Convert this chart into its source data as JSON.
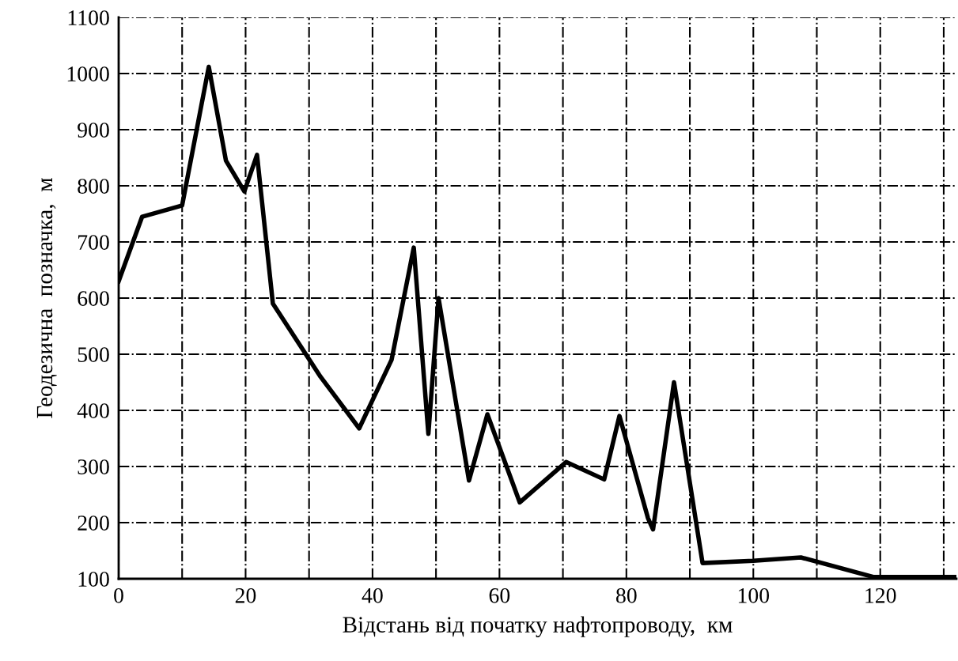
{
  "chart_data": {
    "type": "line",
    "xlabel": "Відстань від початку нафтопроводу,  км",
    "ylabel": "Геодезична  позначка,  м",
    "x": [
      0,
      3.7,
      10,
      14.2,
      16.9,
      19.8,
      21.8,
      24.3,
      31.8,
      37.9,
      43,
      46.5,
      48.8,
      50.4,
      55.2,
      58.1,
      63.2,
      70.5,
      76.5,
      78.9,
      83.4,
      84.2,
      87.5,
      92,
      100,
      107.5,
      119,
      132
    ],
    "series": [
      {
        "color": "#000000",
        "values": [
          630,
          745,
          765,
          1012,
          845,
          790,
          855,
          590,
          460,
          368,
          490,
          690,
          358,
          600,
          275,
          393,
          236,
          308,
          277,
          390,
          208,
          188,
          450,
          128,
          132,
          138,
          103,
          103
        ]
      }
    ],
    "xlim": [
      0,
      132
    ],
    "xticks": [
      0,
      {
        "value": 10,
        "label": null
      },
      20,
      {
        "value": 30,
        "label": null
      },
      40,
      {
        "value": 50,
        "label": null
      },
      60,
      {
        "value": 70,
        "label": null
      },
      80,
      {
        "value": 90,
        "label": null
      },
      100,
      {
        "value": 110,
        "label": null
      },
      120,
      {
        "value": 130,
        "label": null
      }
    ],
    "ylim": [
      100,
      1100
    ],
    "yticks": [
      100,
      200,
      300,
      400,
      500,
      600,
      700,
      800,
      900,
      1000,
      1100
    ],
    "grid": true,
    "marker": "none",
    "line_style": "solid"
  }
}
